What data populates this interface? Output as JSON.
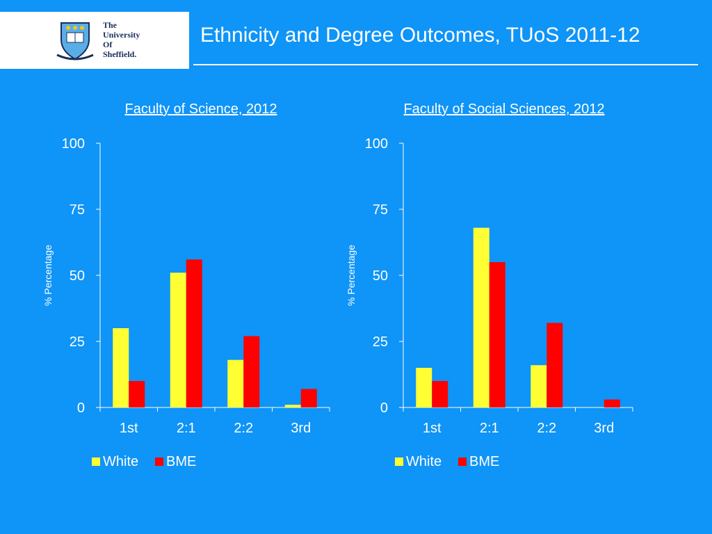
{
  "logo": {
    "line1": "The",
    "line2": "University",
    "line3": "Of",
    "line4": "Sheffield."
  },
  "page": {
    "title": "Ethnicity and Degree Outcomes, TUoS 2011-12"
  },
  "colors": {
    "background": "#0f94f7",
    "white_series": "#ffff33",
    "bme_series": "#ff0000"
  },
  "chart_data": [
    {
      "type": "bar",
      "title": "Faculty of Science, 2012",
      "ylabel": "% Percentage",
      "xlabel": "",
      "categories": [
        "1st",
        "2:1",
        "2:2",
        "3rd"
      ],
      "yticks": [
        0,
        25,
        50,
        75,
        100
      ],
      "ylim": [
        0,
        100
      ],
      "legend_position": "bottom",
      "grid": false,
      "series": [
        {
          "name": "White",
          "color": "#ffff33",
          "values": [
            30,
            51,
            18,
            1
          ]
        },
        {
          "name": "BME",
          "color": "#ff0000",
          "values": [
            10,
            56,
            27,
            7
          ]
        }
      ]
    },
    {
      "type": "bar",
      "title": "Faculty of Social Sciences, 2012",
      "ylabel": "% Percentage",
      "xlabel": "",
      "categories": [
        "1st",
        "2:1",
        "2:2",
        "3rd"
      ],
      "yticks": [
        0,
        25,
        50,
        75,
        100
      ],
      "ylim": [
        0,
        100
      ],
      "legend_position": "bottom",
      "grid": false,
      "series": [
        {
          "name": "White",
          "color": "#ffff33",
          "values": [
            15,
            68,
            16,
            0
          ]
        },
        {
          "name": "BME",
          "color": "#ff0000",
          "values": [
            10,
            55,
            32,
            3
          ]
        }
      ]
    }
  ]
}
